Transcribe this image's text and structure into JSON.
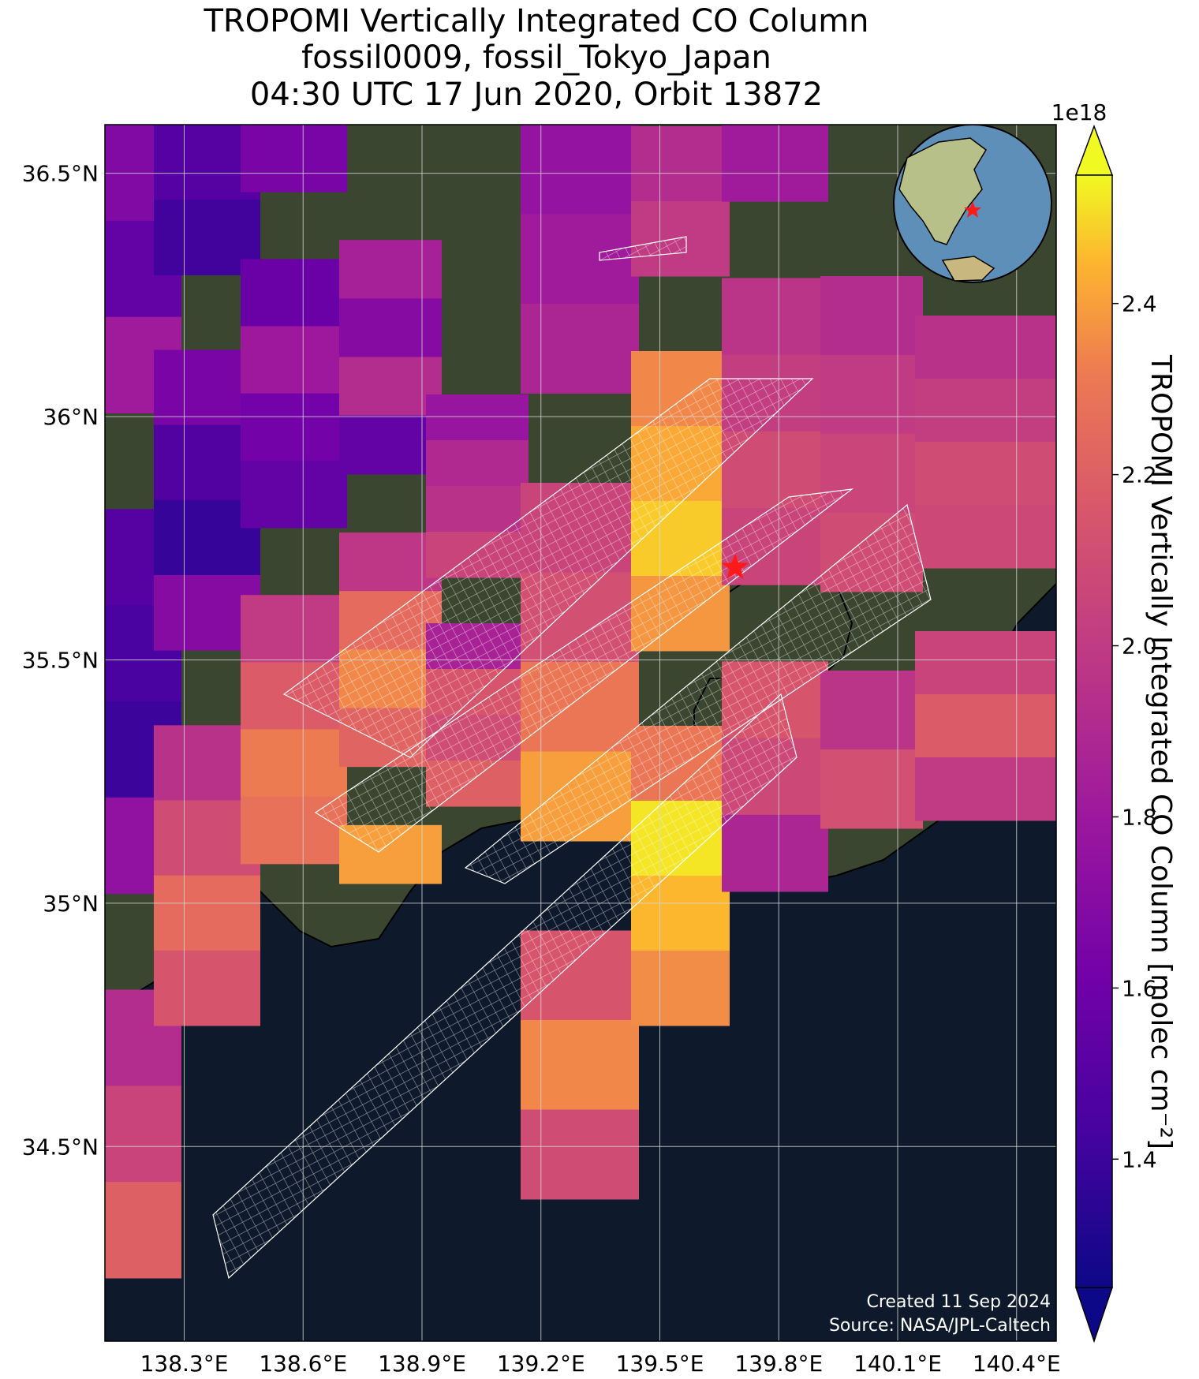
{
  "title": {
    "line1": "TROPOMI Vertically Integrated CO Column",
    "line2": "fossil0009, fossil_Tokyo_Japan",
    "line3": "04:30 UTC 17 Jun 2020, Orbit 13872"
  },
  "map": {
    "lon_range": [
      138.1,
      140.5
    ],
    "lat_range": [
      34.1,
      36.6
    ],
    "lon_ticks": [
      "138.3°E",
      "138.6°E",
      "138.9°E",
      "139.2°E",
      "139.5°E",
      "139.8°E",
      "140.1°E",
      "140.4°E"
    ],
    "lat_ticks": [
      "36.5°N",
      "36°N",
      "35.5°N",
      "35°N",
      "34.5°N"
    ],
    "target_marker": "red-star",
    "basemap": "satellite-imagery",
    "overlay": "white-outlined-grid-swaths"
  },
  "colorbar": {
    "label": "TROPOMI Vertically Integrated CO Column [molec cm⁻²]",
    "multiplier": "1e18",
    "ticks": [
      "1.4",
      "1.6",
      "1.8",
      "2.0",
      "2.2",
      "2.4"
    ],
    "range": [
      1.25,
      2.55
    ],
    "extend": "both",
    "colormap": "plasma"
  },
  "credit": {
    "created": "Created 11 Sep 2024",
    "source": "Source: NASA/JPL-Caltech"
  },
  "colors": {
    "ocean": "#0e1a2c",
    "land": "#3a4630",
    "star": "#ff1a1a"
  }
}
